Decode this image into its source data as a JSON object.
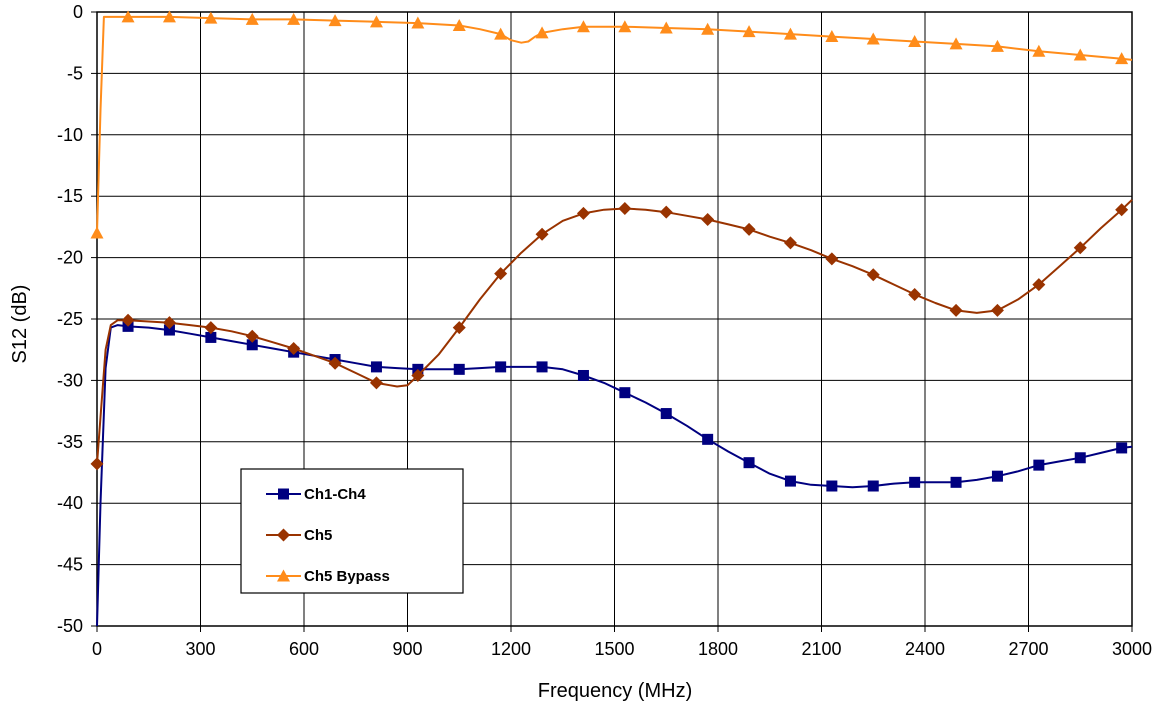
{
  "chart_data": {
    "type": "line",
    "title": "",
    "xlabel": "Frequency (MHz)",
    "ylabel": "S12 (dB)",
    "xlim": [
      0,
      3000
    ],
    "ylim": [
      -50,
      0
    ],
    "x_ticks": [
      "0",
      "300",
      "600",
      "900",
      "1200",
      "1500",
      "1800",
      "2100",
      "2400",
      "2700",
      "3000"
    ],
    "y_ticks": [
      "0",
      "-5",
      "-10",
      "-15",
      "-20",
      "-25",
      "-30",
      "-35",
      "-40",
      "-45",
      "-50"
    ],
    "grid": true,
    "legend_position": "bottom-left",
    "series": [
      {
        "name": "Ch1-Ch4",
        "color": "#000080",
        "marker": "square",
        "x": [
          0,
          10,
          25,
          40,
          60,
          90,
          150,
          210,
          270,
          330,
          390,
          450,
          510,
          570,
          630,
          690,
          750,
          810,
          870,
          930,
          990,
          1050,
          1110,
          1170,
          1230,
          1290,
          1350,
          1410,
          1470,
          1530,
          1590,
          1650,
          1710,
          1770,
          1830,
          1890,
          1950,
          2010,
          2070,
          2130,
          2190,
          2250,
          2310,
          2370,
          2430,
          2490,
          2550,
          2610,
          2670,
          2730,
          2790,
          2850,
          2910,
          2970,
          3000
        ],
        "y": [
          -50,
          -40,
          -29,
          -25.7,
          -25.5,
          -25.6,
          -25.7,
          -25.9,
          -26.2,
          -26.5,
          -26.8,
          -27.1,
          -27.4,
          -27.7,
          -28.0,
          -28.3,
          -28.6,
          -28.9,
          -29.0,
          -29.1,
          -29.1,
          -29.1,
          -29.0,
          -28.9,
          -28.9,
          -28.9,
          -29.1,
          -29.6,
          -30.2,
          -31.0,
          -31.8,
          -32.7,
          -33.7,
          -34.8,
          -35.8,
          -36.7,
          -37.6,
          -38.2,
          -38.5,
          -38.6,
          -38.7,
          -38.6,
          -38.4,
          -38.3,
          -38.3,
          -38.3,
          -38.1,
          -37.8,
          -37.4,
          -36.9,
          -36.6,
          -36.3,
          -35.9,
          -35.5,
          -35.4
        ],
        "markers_x": [
          90,
          210,
          330,
          450,
          570,
          690,
          810,
          930,
          1050,
          1170,
          1290,
          1410,
          1530,
          1650,
          1770,
          1890,
          2010,
          2130,
          2250,
          2370,
          2490,
          2610,
          2730,
          2850,
          2970
        ],
        "markers_y": [
          -25.6,
          -25.9,
          -26.5,
          -27.1,
          -27.7,
          -28.3,
          -28.9,
          -29.1,
          -29.1,
          -28.9,
          -28.9,
          -29.6,
          -31.0,
          -32.7,
          -34.8,
          -36.7,
          -38.2,
          -38.6,
          -38.6,
          -38.3,
          -38.3,
          -37.8,
          -36.9,
          -36.3,
          -35.5
        ]
      },
      {
        "name": "Ch5",
        "color": "#993300",
        "marker": "diamond",
        "x": [
          0,
          10,
          25,
          40,
          60,
          90,
          150,
          210,
          270,
          330,
          390,
          450,
          510,
          570,
          630,
          690,
          750,
          810,
          850,
          870,
          900,
          930,
          990,
          1050,
          1110,
          1170,
          1230,
          1290,
          1350,
          1410,
          1470,
          1530,
          1590,
          1650,
          1710,
          1770,
          1830,
          1890,
          1950,
          2010,
          2070,
          2130,
          2190,
          2250,
          2310,
          2370,
          2430,
          2490,
          2550,
          2610,
          2670,
          2730,
          2790,
          2850,
          2910,
          2970,
          3000
        ],
        "y": [
          -36.8,
          -33,
          -27.5,
          -25.5,
          -25.1,
          -25.1,
          -25.2,
          -25.3,
          -25.5,
          -25.7,
          -26.0,
          -26.4,
          -26.9,
          -27.4,
          -28.0,
          -28.6,
          -29.4,
          -30.2,
          -30.4,
          -30.5,
          -30.4,
          -29.6,
          -27.9,
          -25.7,
          -23.4,
          -21.3,
          -19.6,
          -18.1,
          -17.0,
          -16.4,
          -16.1,
          -16.0,
          -16.1,
          -16.3,
          -16.6,
          -16.9,
          -17.3,
          -17.7,
          -18.3,
          -18.8,
          -19.4,
          -20.1,
          -20.7,
          -21.4,
          -22.2,
          -23.0,
          -23.7,
          -24.3,
          -24.5,
          -24.3,
          -23.4,
          -22.2,
          -20.7,
          -19.2,
          -17.6,
          -16.1,
          -15.3
        ],
        "markers_x": [
          0,
          90,
          210,
          330,
          450,
          570,
          690,
          810,
          930,
          1050,
          1170,
          1290,
          1410,
          1530,
          1650,
          1770,
          1890,
          2010,
          2130,
          2250,
          2370,
          2490,
          2610,
          2730,
          2850,
          2970
        ],
        "markers_y": [
          -36.8,
          -25.1,
          -25.3,
          -25.7,
          -26.4,
          -27.4,
          -28.6,
          -30.2,
          -29.6,
          -25.7,
          -21.3,
          -18.1,
          -16.4,
          -16.0,
          -16.3,
          -16.9,
          -17.7,
          -18.8,
          -20.1,
          -21.4,
          -23.0,
          -24.3,
          -24.3,
          -22.2,
          -19.2,
          -16.1
        ]
      },
      {
        "name": "Ch5 Bypass",
        "color": "#FF8C1A",
        "marker": "triangle",
        "x": [
          0,
          10,
          20,
          30,
          90,
          210,
          330,
          450,
          570,
          690,
          810,
          930,
          1050,
          1110,
          1170,
          1200,
          1230,
          1250,
          1270,
          1290,
          1350,
          1410,
          1530,
          1650,
          1770,
          1890,
          2010,
          2130,
          2250,
          2370,
          2490,
          2610,
          2730,
          2850,
          2970,
          3000
        ],
        "y": [
          -18,
          -8,
          -0.4,
          -0.4,
          -0.4,
          -0.4,
          -0.5,
          -0.6,
          -0.6,
          -0.7,
          -0.8,
          -0.9,
          -1.1,
          -1.4,
          -1.8,
          -2.3,
          -2.5,
          -2.4,
          -2.0,
          -1.7,
          -1.4,
          -1.2,
          -1.2,
          -1.3,
          -1.4,
          -1.6,
          -1.8,
          -2.0,
          -2.2,
          -2.4,
          -2.6,
          -2.8,
          -3.2,
          -3.5,
          -3.8,
          -3.9
        ],
        "markers_x": [
          0,
          90,
          210,
          330,
          450,
          570,
          690,
          810,
          930,
          1050,
          1170,
          1290,
          1410,
          1530,
          1650,
          1770,
          1890,
          2010,
          2130,
          2250,
          2370,
          2490,
          2610,
          2730,
          2850,
          2970
        ],
        "markers_y": [
          -18,
          -0.4,
          -0.4,
          -0.5,
          -0.6,
          -0.6,
          -0.7,
          -0.8,
          -0.9,
          -1.1,
          -1.8,
          -1.7,
          -1.2,
          -1.2,
          -1.3,
          -1.4,
          -1.6,
          -1.8,
          -2.0,
          -2.2,
          -2.4,
          -2.6,
          -2.8,
          -3.2,
          -3.5,
          -3.8
        ]
      }
    ]
  }
}
